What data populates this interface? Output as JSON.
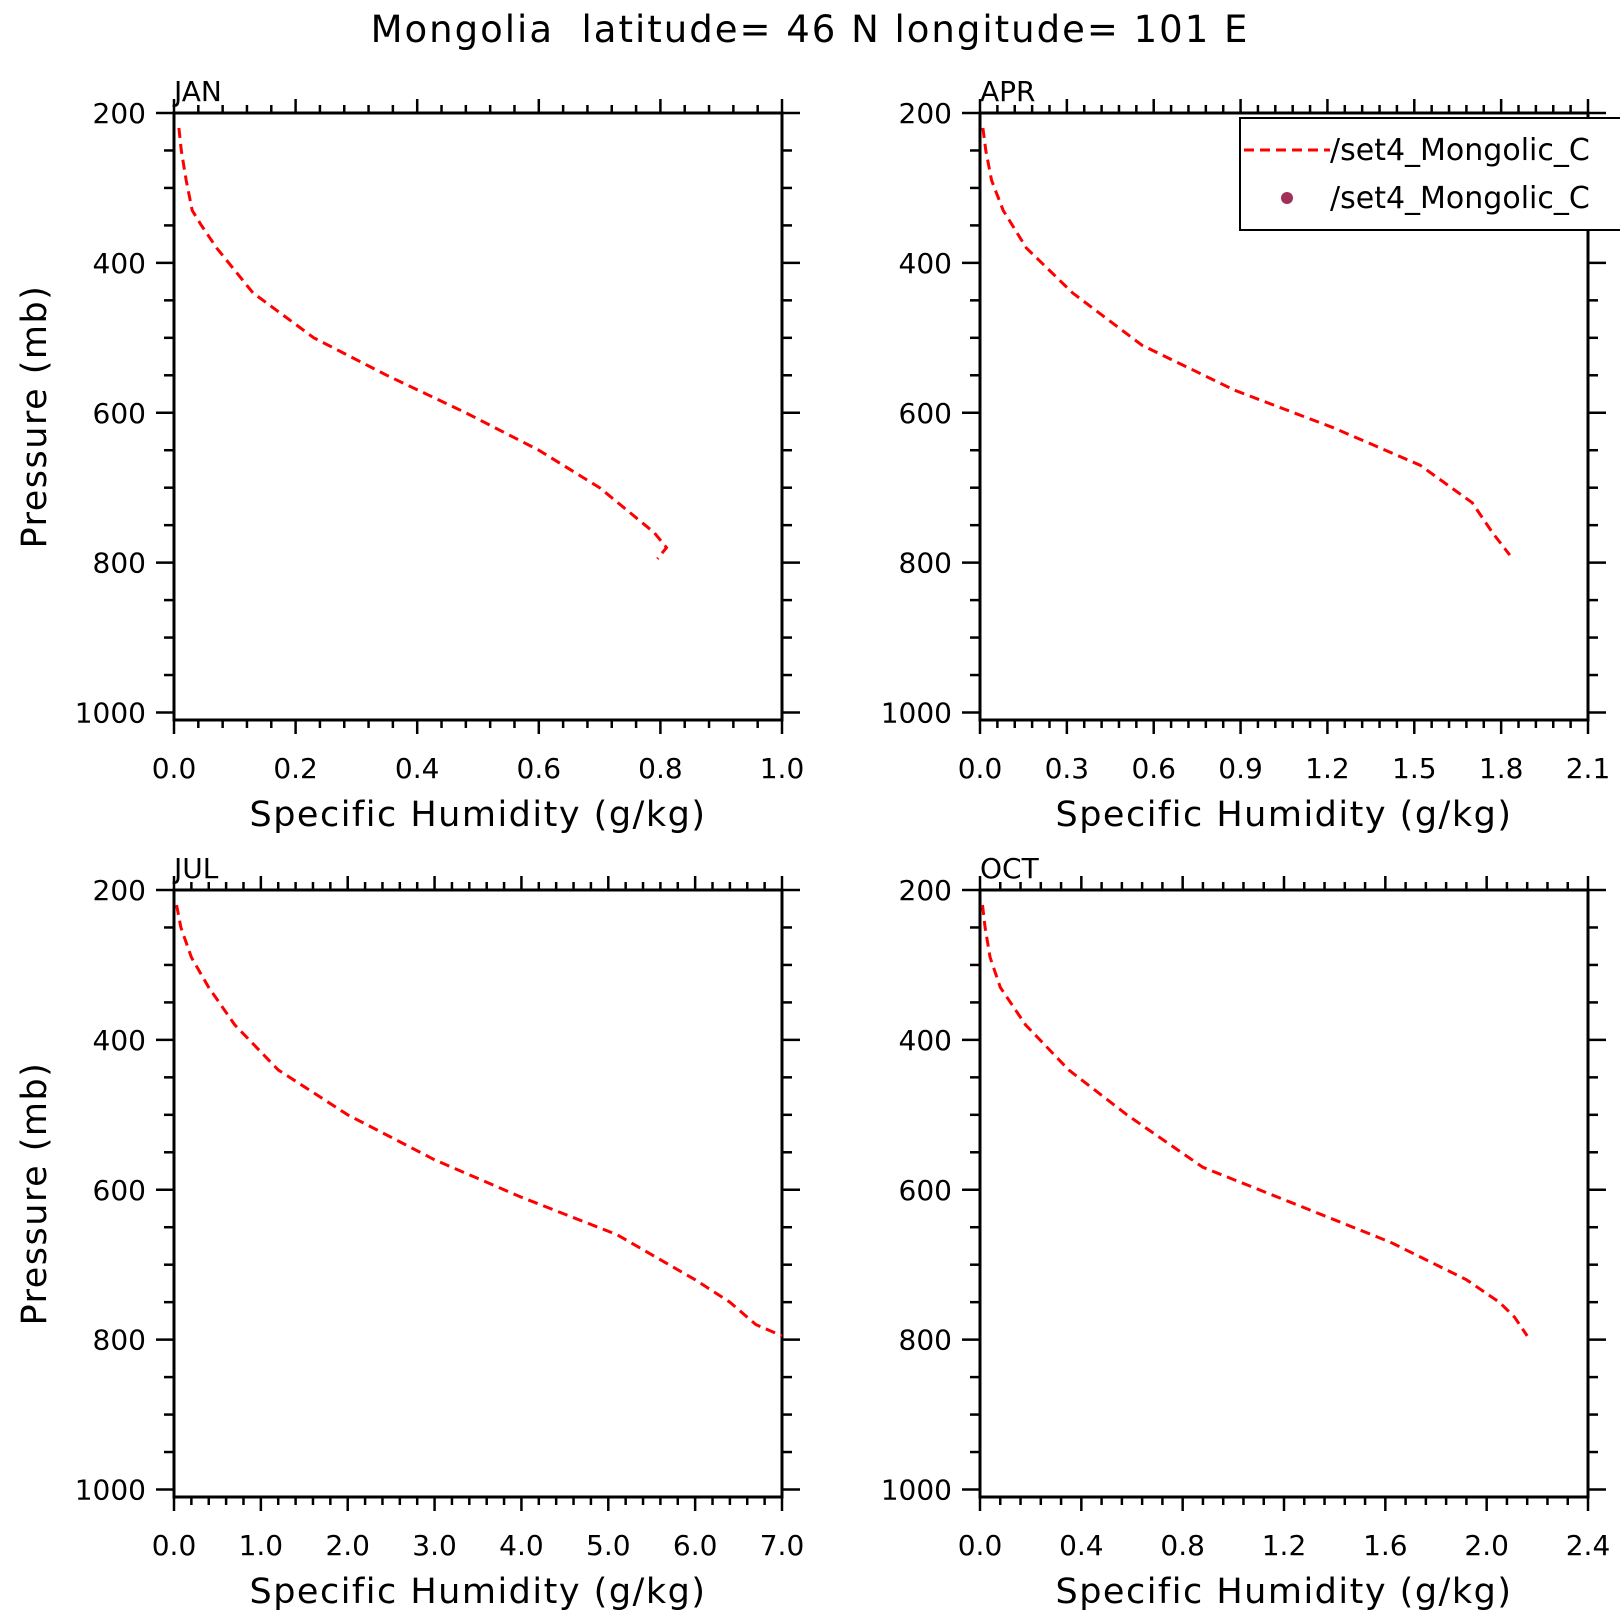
{
  "figure": {
    "title": "Mongolia  latitude= 46 N longitude= 101 E",
    "colors": {
      "line": "#ff0000",
      "marker": "#a0305a",
      "axis": "#000000"
    }
  },
  "legend": {
    "placement": "top-right of APR panel (clipped)",
    "entries": [
      {
        "label": "/set4_Mongolic_C",
        "style": "dashed-line",
        "color": "#ff0000"
      },
      {
        "label": "/set4_Mongolic_C",
        "style": "dot",
        "color": "#a0305a"
      }
    ]
  },
  "chart_data": [
    {
      "type": "line",
      "panel": "JAN",
      "xlabel": "Specific Humidity (g/kg)",
      "ylabel": "Pressure (mb)",
      "xlim": [
        0.0,
        1.0
      ],
      "ylim": [
        1000,
        200
      ],
      "xticks": [
        "0.0",
        "0.2",
        "0.4",
        "0.6",
        "0.8",
        "1.0"
      ],
      "yticks": [
        "200",
        "400",
        "600",
        "800",
        "1000"
      ],
      "series": [
        {
          "style": "dashed",
          "color": "#ff0000",
          "x": [
            0.008,
            0.012,
            0.02,
            0.03,
            0.045,
            0.07,
            0.13,
            0.23,
            0.35,
            0.48,
            0.6,
            0.7,
            0.76,
            0.79,
            0.81,
            0.795
          ],
          "y": [
            220,
            250,
            290,
            330,
            350,
            380,
            440,
            500,
            550,
            600,
            650,
            700,
            740,
            760,
            780,
            795
          ]
        }
      ]
    },
    {
      "type": "line",
      "panel": "APR",
      "xlabel": "Specific Humidity (g/kg)",
      "ylabel": "",
      "xlim": [
        0.0,
        2.1
      ],
      "ylim": [
        1000,
        200
      ],
      "xticks": [
        "0.0",
        "0.3",
        "0.6",
        "0.9",
        "1.2",
        "1.5",
        "1.8",
        "2.1"
      ],
      "yticks": [
        "200",
        "400",
        "600",
        "800",
        "1000"
      ],
      "series": [
        {
          "style": "dashed",
          "color": "#ff0000",
          "x": [
            0.01,
            0.02,
            0.04,
            0.08,
            0.16,
            0.32,
            0.56,
            0.88,
            1.22,
            1.52,
            1.7,
            1.77,
            1.81,
            1.83
          ],
          "y": [
            220,
            250,
            290,
            330,
            380,
            440,
            510,
            570,
            620,
            670,
            720,
            760,
            780,
            790
          ]
        }
      ]
    },
    {
      "type": "line",
      "panel": "JUL",
      "xlabel": "Specific Humidity (g/kg)",
      "ylabel": "Pressure (mb)",
      "xlim": [
        0.0,
        7.0
      ],
      "ylim": [
        1000,
        200
      ],
      "xticks": [
        "0.0",
        "1.0",
        "2.0",
        "3.0",
        "4.0",
        "5.0",
        "6.0",
        "7.0"
      ],
      "yticks": [
        "200",
        "400",
        "600",
        "800",
        "1000"
      ],
      "series": [
        {
          "style": "dashed",
          "color": "#ff0000",
          "x": [
            0.03,
            0.08,
            0.2,
            0.4,
            0.7,
            1.2,
            2.0,
            3.0,
            4.0,
            5.1,
            6.0,
            6.4,
            6.7,
            7.0
          ],
          "y": [
            220,
            250,
            290,
            330,
            380,
            440,
            500,
            560,
            610,
            660,
            720,
            750,
            780,
            795
          ]
        }
      ]
    },
    {
      "type": "line",
      "panel": "OCT",
      "xlabel": "Specific Humidity (g/kg)",
      "ylabel": "",
      "xlim": [
        0.0,
        2.4
      ],
      "ylim": [
        1000,
        200
      ],
      "xticks": [
        "0.0",
        "0.4",
        "0.8",
        "1.2",
        "1.6",
        "2.0",
        "2.4"
      ],
      "yticks": [
        "200",
        "400",
        "600",
        "800",
        "1000"
      ],
      "series": [
        {
          "style": "dashed",
          "color": "#ff0000",
          "x": [
            0.01,
            0.02,
            0.04,
            0.08,
            0.18,
            0.35,
            0.58,
            0.88,
            1.25,
            1.62,
            1.92,
            2.05,
            2.11,
            2.14,
            2.16
          ],
          "y": [
            220,
            250,
            290,
            330,
            380,
            440,
            500,
            570,
            620,
            670,
            720,
            750,
            770,
            785,
            795
          ]
        }
      ]
    }
  ]
}
